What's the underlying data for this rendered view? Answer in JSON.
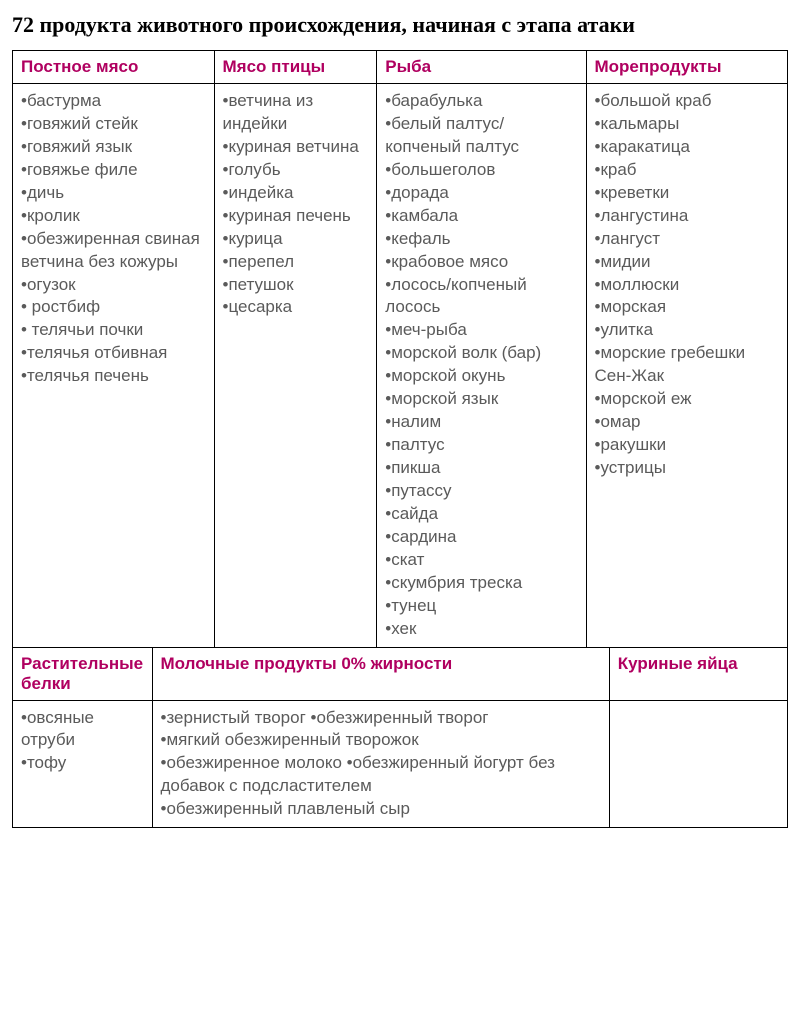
{
  "title": "72 продукта животного происхождения, начиная с этапа атаки",
  "colors": {
    "header_text": "#b00060",
    "body_text": "#5a5a5a",
    "border": "#000000",
    "title_text": "#000000",
    "background": "#ffffff"
  },
  "typography": {
    "title_font": "Times New Roman",
    "body_font": "Verdana",
    "title_size_pt": 16,
    "header_size_pt": 13,
    "body_size_pt": 13,
    "header_weight": "bold"
  },
  "top_table": {
    "columns": [
      {
        "header": "Постное мясо",
        "width_pct": 26
      },
      {
        "header": "Мясо птицы",
        "width_pct": 21
      },
      {
        "header": "Рыба",
        "width_pct": 27
      },
      {
        "header": "Морепродукты",
        "width_pct": 26
      }
    ],
    "meat_items": [
      "бастурма",
      "говяжий стейк",
      "говяжий язык",
      "говяжье филе",
      "дичь",
      "кролик",
      "обезжиренная свиная ветчина без кожуры",
      "огузок",
      " ростбиф",
      " телячьи почки",
      "телячья отбивная",
      "телячья печень"
    ],
    "poultry_items": [
      "ветчина из индейки",
      "куриная ветчина",
      "голубь",
      "индейка",
      "куриная печень",
      "курица",
      "перепел",
      "петушок",
      "цесарка"
    ],
    "fish_items": [
      "барабулька",
      "белый палтус/копченый палтус",
      "большеголов",
      "дорада",
      "камбала",
      "кефаль",
      "крабовое мясо",
      "лосось/копченый лосось",
      "меч-рыба",
      "морской волк (бар)",
      "морской окунь",
      "морской язык",
      "налим",
      "палтус",
      "пикша",
      "путассу",
      "сайда",
      "сардина",
      "скат",
      "скумбрия треска",
      "тунец",
      "хек"
    ],
    "seafood_items": [
      "большой краб",
      "кальмары",
      "каракатица",
      "краб",
      "креветки",
      "лангустина",
      "лангуст",
      "мидии",
      "моллюски",
      "морская",
      "улитка",
      "морские гребешки Сен-Жак",
      "морской еж",
      "омар",
      "ракушки",
      "устрицы"
    ]
  },
  "bottom_table": {
    "columns": [
      {
        "header": "Растительные белки",
        "width_pct": 18
      },
      {
        "header": "Молочные продукты 0% жирности",
        "width_pct": 59
      },
      {
        "header": "Куриные яйца",
        "width_pct": 23
      }
    ],
    "plant_items": [
      "овсяные отруби",
      "тофу"
    ],
    "dairy_lines": [
      "•зернистый творог •обезжиренный творог",
      "•мягкий обезжиренный творожок",
      "•обезжиренное молоко •обезжиренный йогурт без добавок с подсластителем",
      "•обезжиренный плавленый сыр"
    ],
    "eggs_items": []
  }
}
